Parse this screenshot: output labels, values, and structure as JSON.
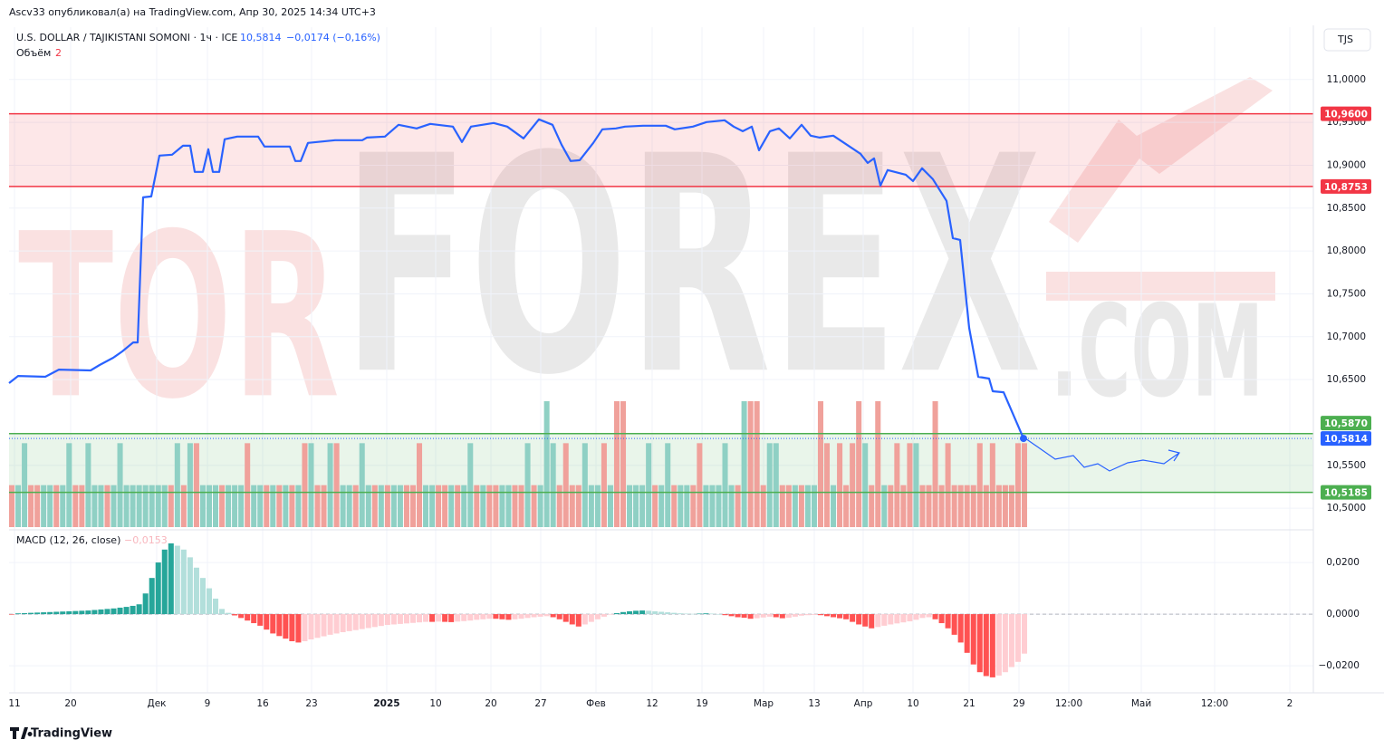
{
  "header": {
    "publisher": "Ascv33 опубликовал(а) на TradingView.com, Апр 30, 2025 14:34 UTC+3",
    "currency_button": "TJS",
    "footer": "TradingView"
  },
  "watermark": {
    "part1": "TOR",
    "part2": "FOREX",
    "part3": ".COM"
  },
  "chart_data": {
    "type": "line",
    "title": "U.S. DOLLAR / TAJIKISTANI SOMONI · 1ч · ICE",
    "price_label": "10,5814",
    "change_label": "−0,0174 (−0,16%)",
    "color": "#2962ff",
    "x": [
      0,
      10,
      40,
      55,
      90,
      100,
      115,
      125,
      137,
      142,
      148,
      157,
      166,
      180,
      192,
      200,
      205,
      214,
      220,
      225,
      232,
      238,
      252,
      275,
      282,
      310,
      316,
      322,
      330,
      350,
      360,
      390,
      395,
      415,
      430,
      450,
      465,
      490,
      500,
      510,
      535,
      550,
      568,
      585,
      600,
      610,
      620,
      630,
      645,
      655,
      670,
      680,
      700,
      725,
      735,
      755,
      770,
      790,
      800,
      810,
      820,
      828,
      840,
      850,
      862,
      875,
      885,
      895,
      910,
      925,
      940,
      948,
      955,
      962,
      970,
      990,
      998,
      1008,
      1020,
      1035,
      1042,
      1050,
      1060,
      1070,
      1082,
      1086,
      1098,
      1120
    ],
    "values": [
      10.6459,
      10.6543,
      10.6533,
      10.6617,
      10.6607,
      10.667,
      10.6755,
      10.6829,
      10.6934,
      10.6934,
      10.8626,
      10.8636,
      10.9112,
      10.9123,
      10.9228,
      10.9228,
      10.8922,
      10.8922,
      10.9186,
      10.8922,
      10.8922,
      10.9302,
      10.9334,
      10.9334,
      10.9218,
      10.9218,
      10.9049,
      10.9049,
      10.926,
      10.9281,
      10.9292,
      10.9292,
      10.9323,
      10.9334,
      10.9471,
      10.9429,
      10.9482,
      10.945,
      10.9271,
      10.945,
      10.9493,
      10.945,
      10.9313,
      10.9535,
      10.9471,
      10.9239,
      10.9049,
      10.9059,
      10.926,
      10.9419,
      10.9429,
      10.945,
      10.9461,
      10.9461,
      10.9419,
      10.945,
      10.9503,
      10.9524,
      10.945,
      10.9397,
      10.945,
      10.9175,
      10.9397,
      10.9429,
      10.9313,
      10.9471,
      10.9345,
      10.9323,
      10.9345,
      10.9239,
      10.9133,
      10.9027,
      10.908,
      10.8763,
      10.8943,
      10.889,
      10.8816,
      10.8964,
      10.8837,
      10.8584,
      10.815,
      10.8129,
      10.7104,
      10.6533,
      10.6512,
      10.6364,
      10.6353,
      10.5814
    ],
    "xlim": [
      0,
      1440
    ],
    "xticks": [
      {
        "value": 6,
        "label": "11"
      },
      {
        "value": 68,
        "label": "20"
      },
      {
        "value": 163,
        "label": "Дек"
      },
      {
        "value": 219,
        "label": "9"
      },
      {
        "value": 280,
        "label": "16"
      },
      {
        "value": 334,
        "label": "23"
      },
      {
        "value": 417,
        "label": "2025"
      },
      {
        "value": 471,
        "label": "10"
      },
      {
        "value": 532,
        "label": "20"
      },
      {
        "value": 587,
        "label": "27"
      },
      {
        "value": 648,
        "label": "Фев"
      },
      {
        "value": 710,
        "label": "12"
      },
      {
        "value": 765,
        "label": "19"
      },
      {
        "value": 833,
        "label": "Мар"
      },
      {
        "value": 889,
        "label": "13"
      },
      {
        "value": 943,
        "label": "Апр"
      },
      {
        "value": 998,
        "label": "10"
      },
      {
        "value": 1060,
        "label": "21"
      },
      {
        "value": 1115,
        "label": "29"
      },
      {
        "value": 1170,
        "label": "12:00"
      },
      {
        "value": 1250,
        "label": "Май"
      },
      {
        "value": 1331,
        "label": "12:00"
      },
      {
        "value": 1414,
        "label": "2"
      }
    ],
    "ylim": [
      10.478,
      11.061
    ],
    "yticks": [
      {
        "value": 10.5,
        "label": "10,5000"
      },
      {
        "value": 10.55,
        "label": "10,5500"
      },
      {
        "value": 10.65,
        "label": "10,6500"
      },
      {
        "value": 10.7,
        "label": "10,7000"
      },
      {
        "value": 10.75,
        "label": "10,7500"
      },
      {
        "value": 10.8,
        "label": "10,8000"
      },
      {
        "value": 10.85,
        "label": "10,8500"
      },
      {
        "value": 10.9,
        "label": "10,9000"
      },
      {
        "value": 10.95,
        "label": "10,9500"
      },
      {
        "value": 11,
        "label": "11,0000"
      }
    ],
    "grid": true,
    "levels": [
      {
        "value": 10.96,
        "label": "10,9600",
        "color": "#f23645"
      },
      {
        "value": 10.8753,
        "label": "10,8753",
        "color": "#f23645"
      },
      {
        "value": 10.587,
        "label": "10,5870",
        "color": "#4caf50"
      },
      {
        "value": 10.5185,
        "label": "10,5185",
        "color": "#4caf50"
      }
    ],
    "zones": [
      {
        "from": 1,
        "to": 0,
        "color": "#f23645"
      },
      {
        "from": 3,
        "to": 2,
        "color": "#4caf50"
      }
    ],
    "volume": {
      "name": "Объём",
      "up_color": "#8fd0c4",
      "down_color": "#f0a19b",
      "values": [
        1,
        1,
        2,
        1,
        1,
        1,
        1,
        1,
        1,
        2,
        1,
        1,
        2,
        1,
        1,
        1,
        1,
        2,
        1,
        1,
        1,
        1,
        1,
        1,
        1,
        1,
        2,
        1,
        2,
        2,
        1,
        1,
        1,
        1,
        1,
        1,
        1,
        2,
        1,
        1,
        1,
        1,
        1,
        1,
        1,
        1,
        2,
        2,
        1,
        1,
        2,
        2,
        1,
        1,
        1,
        2,
        1,
        1,
        1,
        1,
        1,
        1,
        1,
        1,
        2,
        1,
        1,
        1,
        1,
        1,
        1,
        1,
        2,
        1,
        1,
        1,
        1,
        1,
        1,
        1,
        1,
        2,
        1,
        1,
        3,
        2,
        1,
        2,
        1,
        1,
        2,
        1,
        1,
        2,
        1,
        3,
        3,
        1,
        1,
        1,
        2,
        1,
        1,
        2,
        1,
        1,
        1,
        1,
        2,
        1,
        1,
        1,
        2,
        1,
        1,
        3,
        3,
        3,
        1,
        2,
        2,
        1,
        1,
        1,
        1,
        1,
        1,
        3,
        2,
        1,
        2,
        1,
        2,
        3,
        2,
        1,
        3,
        1,
        1,
        2,
        1,
        2,
        2,
        1,
        1,
        3,
        1,
        2,
        1,
        1,
        1,
        1,
        2,
        1,
        2,
        1,
        1,
        1,
        2,
        2
      ],
      "up": [
        0,
        1,
        1,
        0,
        0,
        1,
        1,
        0,
        1,
        1,
        0,
        0,
        1,
        1,
        1,
        0,
        1,
        1,
        1,
        1,
        1,
        1,
        1,
        1,
        1,
        0,
        1,
        0,
        1,
        0,
        1,
        1,
        1,
        0,
        1,
        1,
        1,
        0,
        1,
        1,
        0,
        1,
        0,
        1,
        0,
        1,
        0,
        1,
        0,
        0,
        1,
        0,
        1,
        1,
        0,
        1,
        1,
        0,
        1,
        0,
        1,
        1,
        0,
        0,
        0,
        1,
        1,
        0,
        0,
        1,
        0,
        1,
        1,
        0,
        1,
        0,
        0,
        1,
        1,
        0,
        0,
        1,
        0,
        1,
        1,
        1,
        0,
        0,
        0,
        0,
        1,
        1,
        1,
        0,
        1,
        0,
        0,
        1,
        1,
        1,
        1,
        0,
        1,
        1,
        0,
        1,
        1,
        0,
        0,
        1,
        1,
        1,
        1,
        1,
        0,
        1,
        0,
        0,
        0,
        1,
        1,
        0,
        0,
        1,
        0,
        1,
        1,
        0,
        0,
        1,
        0,
        0,
        0,
        0,
        1,
        0,
        0,
        1,
        0,
        0,
        0,
        0,
        1,
        0,
        0,
        0,
        0,
        0,
        0,
        0,
        0,
        0,
        0,
        0,
        0,
        0,
        0,
        0,
        0,
        0
      ]
    },
    "macd": {
      "name": "MACD (12, 26, close)",
      "current_label": "−0,0153",
      "colors": {
        "pos_up": "#26a69a",
        "pos_down": "#b2dfdb",
        "neg_down": "#ff5252",
        "neg_up": "#ffcdd2"
      },
      "ylim": [
        -0.0305,
        0.0316
      ],
      "yticks": [
        {
          "value": 0.02,
          "label": "0,0200"
        },
        {
          "value": 0,
          "label": "0,0000"
        },
        {
          "value": -0.02,
          "label": "−0,0200"
        }
      ],
      "values": [
        -0.0002,
        0.0003,
        0.0004,
        0.0005,
        0.0006,
        0.0007,
        0.0008,
        0.0009,
        0.001,
        0.0011,
        0.0012,
        0.0013,
        0.0014,
        0.0016,
        0.0018,
        0.002,
        0.0022,
        0.0025,
        0.0028,
        0.0032,
        0.0038,
        0.008,
        0.014,
        0.02,
        0.025,
        0.0274,
        0.0265,
        0.025,
        0.022,
        0.018,
        0.014,
        0.01,
        0.006,
        0.002,
        0.0005,
        -0.0005,
        -0.0015,
        -0.0025,
        -0.0035,
        -0.0045,
        -0.006,
        -0.0075,
        -0.0085,
        -0.0095,
        -0.0105,
        -0.011,
        -0.0105,
        -0.0098,
        -0.0092,
        -0.0086,
        -0.008,
        -0.0075,
        -0.007,
        -0.0066,
        -0.0062,
        -0.0058,
        -0.0054,
        -0.005,
        -0.0046,
        -0.0042,
        -0.004,
        -0.0038,
        -0.0036,
        -0.0034,
        -0.0032,
        -0.003,
        -0.003,
        -0.0029,
        -0.003,
        -0.0031,
        -0.0029,
        -0.0027,
        -0.0025,
        -0.0022,
        -0.002,
        -0.0018,
        -0.0018,
        -0.002,
        -0.0022,
        -0.002,
        -0.0018,
        -0.0015,
        -0.0012,
        -0.001,
        -0.0008,
        -0.0012,
        -0.002,
        -0.003,
        -0.004,
        -0.0048,
        -0.004,
        -0.003,
        -0.002,
        -0.001,
        -0.0002,
        0.0004,
        0.0008,
        0.0011,
        0.0013,
        0.0014,
        0.0013,
        0.0011,
        0.0009,
        0.0007,
        0.0005,
        0.0003,
        0.0002,
        0.0001,
        0.0002,
        0.0003,
        0.0002,
        0,
        -0.0004,
        -0.0008,
        -0.0012,
        -0.0014,
        -0.0018,
        -0.0016,
        -0.0013,
        -0.001,
        -0.0012,
        -0.0016,
        -0.0014,
        -0.001,
        -0.0006,
        -0.0004,
        -0.0003,
        -0.0004,
        -0.0008,
        -0.0012,
        -0.0016,
        -0.002,
        -0.003,
        -0.004,
        -0.0048,
        -0.0055,
        -0.005,
        -0.0045,
        -0.004,
        -0.0036,
        -0.0032,
        -0.0028,
        -0.0022,
        -0.0015,
        -0.0012,
        -0.002,
        -0.0035,
        -0.0055,
        -0.008,
        -0.011,
        -0.015,
        -0.0195,
        -0.0225,
        -0.024,
        -0.0245,
        -0.0238,
        -0.0225,
        -0.0205,
        -0.0185,
        -0.0153
      ]
    }
  }
}
